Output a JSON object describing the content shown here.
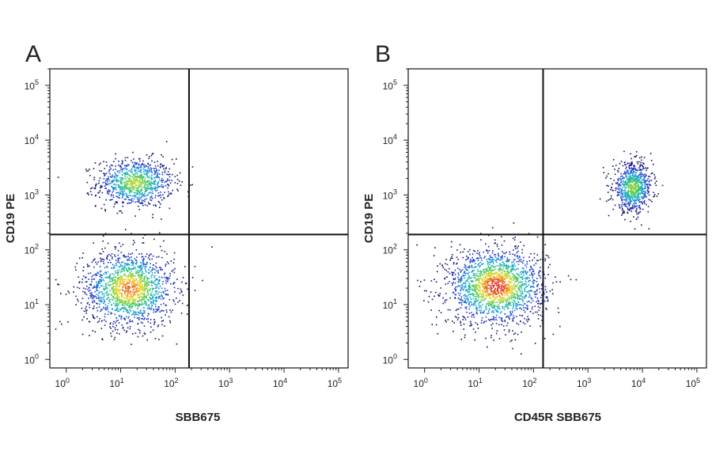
{
  "chart_data": [
    {
      "type": "scatter",
      "panel_label": "A",
      "xlabel": "SBB675",
      "ylabel": "CD19 PE",
      "xscale": "log",
      "yscale": "log",
      "xlim": [
        0.5,
        150000
      ],
      "ylim": [
        0.7,
        200000
      ],
      "x_tick_labels": [
        "10^0",
        "10^1",
        "10^2",
        "10^3",
        "10^4",
        "10^5"
      ],
      "y_tick_labels": [
        "10^0",
        "10^1",
        "10^2",
        "10^3",
        "10^4",
        "10^5"
      ],
      "x_ticks": [
        1,
        10,
        100,
        1000,
        10000,
        100000
      ],
      "y_ticks": [
        1,
        10,
        100,
        1000,
        10000,
        100000
      ],
      "quadrant_gate": {
        "x": 180,
        "y": 190
      },
      "colormap": "density (blue → green → yellow → red)",
      "populations": [
        {
          "center": [
            18,
            1700
          ],
          "spread_decades": [
            0.35,
            0.22
          ],
          "relative_density": 0.35
        },
        {
          "center": [
            14,
            20
          ],
          "spread_decades": [
            0.42,
            0.35
          ],
          "relative_density": 0.6
        }
      ]
    },
    {
      "type": "scatter",
      "panel_label": "B",
      "xlabel": "CD45R SBB675",
      "ylabel": "CD19 PE",
      "xscale": "log",
      "yscale": "log",
      "xlim": [
        0.5,
        150000
      ],
      "ylim": [
        0.7,
        200000
      ],
      "x_tick_labels": [
        "10^0",
        "10^1",
        "10^2",
        "10^3",
        "10^4",
        "10^5"
      ],
      "y_tick_labels": [
        "10^0",
        "10^1",
        "10^2",
        "10^3",
        "10^4",
        "10^5"
      ],
      "x_ticks": [
        1,
        10,
        100,
        1000,
        10000,
        100000
      ],
      "y_ticks": [
        1,
        10,
        100,
        1000,
        10000,
        100000
      ],
      "quadrant_gate": {
        "x": 150,
        "y": 190
      },
      "colormap": "density (blue → green → yellow → red)",
      "populations": [
        {
          "center": [
            6500,
            1400
          ],
          "spread_decades": [
            0.18,
            0.22
          ],
          "relative_density": 0.3
        },
        {
          "center": [
            20,
            22
          ],
          "spread_decades": [
            0.45,
            0.35
          ],
          "relative_density": 0.7
        }
      ]
    }
  ]
}
